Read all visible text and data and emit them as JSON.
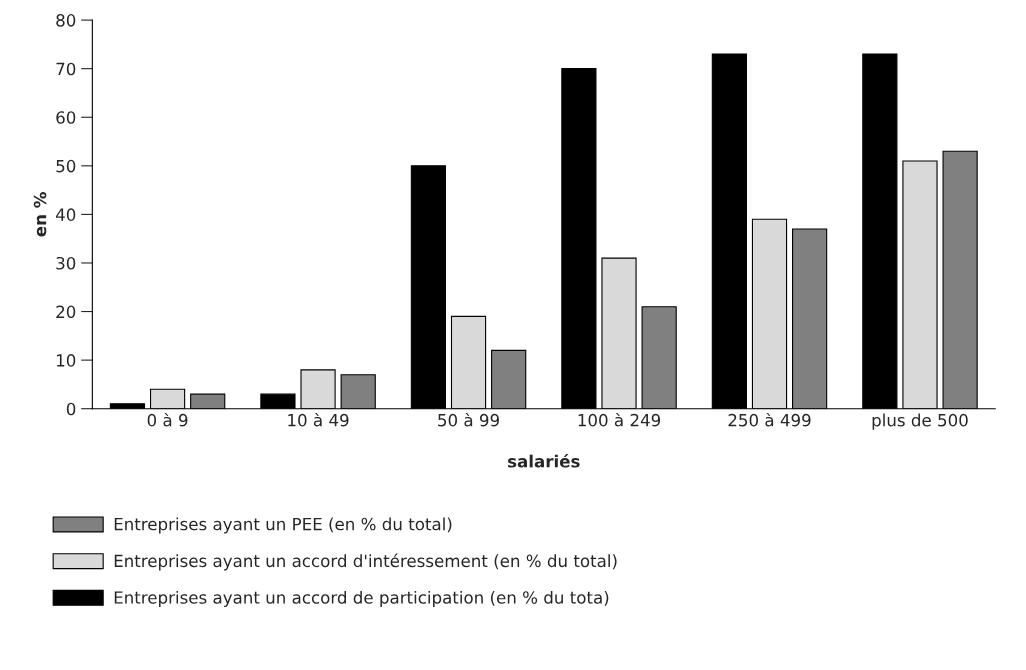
{
  "chart_data": {
    "type": "bar",
    "xlabel": "salariés",
    "ylabel": "en %",
    "categories": [
      "0 à 9",
      "10 à 49",
      "50 à 99",
      "100 à 249",
      "250 à 499",
      "plus de 500"
    ],
    "series": [
      {
        "name": "Entreprises ayant un accord de participation (en % du tota)",
        "color": "#000000",
        "values": [
          1,
          3,
          50,
          70,
          73,
          73
        ]
      },
      {
        "name": "Entreprises ayant un accord d'intéressement (en % du total)",
        "color": "#d9d9d9",
        "values": [
          4,
          8,
          19,
          31,
          39,
          51
        ]
      },
      {
        "name": "Entreprises ayant un PEE (en % du total)",
        "color": "#808080",
        "values": [
          3,
          7,
          12,
          21,
          37,
          53
        ]
      }
    ],
    "ylim": [
      0,
      80
    ],
    "yticks": [
      0,
      10,
      20,
      30,
      40,
      50,
      60,
      70,
      80
    ],
    "grid": false,
    "legend": "bottom"
  }
}
